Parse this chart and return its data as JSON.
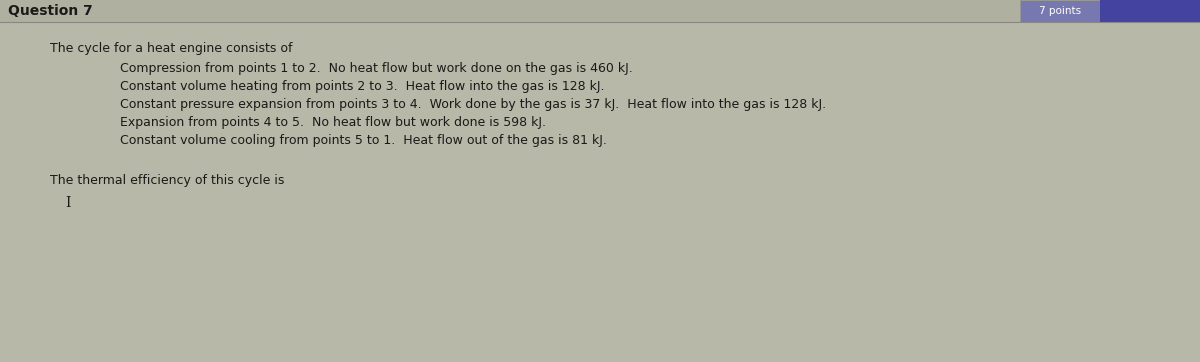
{
  "title": "Question 7",
  "intro": "The cycle for a heat engine consists of",
  "bullet1": "Compression from points 1 to 2.  No heat flow but work done on the gas is 460 kJ.",
  "bullet2": "Constant volume heating from points 2 to 3.  Heat flow into the gas is 128 kJ.",
  "bullet3": "Constant pressure expansion from points 3 to 4.  Work done by the gas is 37 kJ.  Heat flow into the gas is 128 kJ.",
  "bullet4": "Expansion from points 4 to 5.  No heat flow but work done is 598 kJ.",
  "bullet5": "Constant volume cooling from points 5 to 1.  Heat flow out of the gas is 81 kJ.",
  "footer": "The thermal efficiency of this cycle is",
  "cursor": "I",
  "bg_color": "#b8b8a8",
  "header_bg": "#b0b0a0",
  "title_fontsize": 10,
  "body_fontsize": 9,
  "top_right_label": "7 points",
  "top_right_bg": "#7878b0",
  "blue_box_bg": "#4444a0",
  "header_line_color": "#888880",
  "text_color": "#1a1a1a"
}
